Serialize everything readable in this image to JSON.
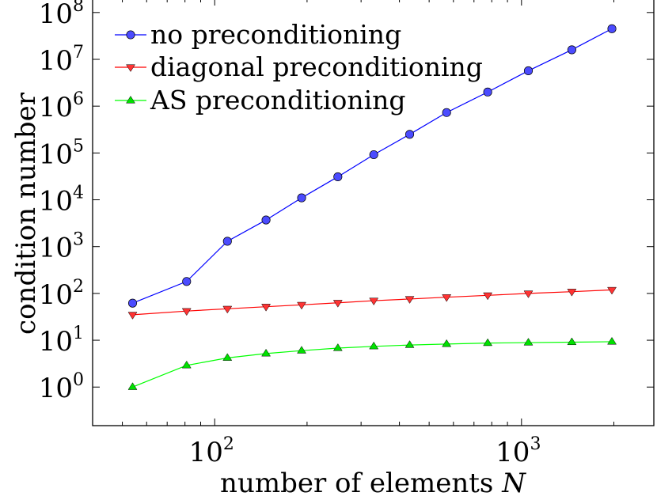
{
  "chart_data": {
    "type": "line",
    "title": "",
    "xlabel": "number of elements",
    "xlabel_var": "N",
    "ylabel": "condition number",
    "x_scale": "log",
    "y_scale": "log",
    "xlim": [
      40,
      2700
    ],
    "ylim": [
      0.15,
      200000000
    ],
    "x_ticks": [
      {
        "value": 100,
        "base": "10",
        "exp": "2"
      },
      {
        "value": 1000,
        "base": "10",
        "exp": "3"
      }
    ],
    "y_ticks": [
      {
        "value": 1,
        "base": "10",
        "exp": "0"
      },
      {
        "value": 10,
        "base": "10",
        "exp": "1"
      },
      {
        "value": 100,
        "base": "10",
        "exp": "2"
      },
      {
        "value": 1000,
        "base": "10",
        "exp": "3"
      },
      {
        "value": 10000,
        "base": "10",
        "exp": "4"
      },
      {
        "value": 100000,
        "base": "10",
        "exp": "5"
      },
      {
        "value": 1000000,
        "base": "10",
        "exp": "6"
      },
      {
        "value": 10000000,
        "base": "10",
        "exp": "7"
      },
      {
        "value": 100000000,
        "base": "10",
        "exp": "8"
      }
    ],
    "grid": false,
    "legend_position": "top-left",
    "x": [
      54,
      81,
      110,
      147,
      192,
      252,
      330,
      432,
      570,
      776,
      1053,
      1459,
      1971
    ],
    "series": [
      {
        "name": "no preconditioning",
        "color": "#0000ff",
        "marker_fill": "#4b4bff",
        "marker": "circle",
        "values": [
          62,
          180,
          1300,
          3700,
          11000,
          31000,
          92000,
          250000,
          730000,
          2000000,
          5700000,
          16000000,
          45000000
        ]
      },
      {
        "name": "diagonal preconditioning",
        "color": "#ff0000",
        "marker_fill": "#ff3333",
        "marker": "triangle-down",
        "values": [
          35,
          42,
          47,
          52,
          57,
          63,
          70,
          76,
          83,
          91,
          100,
          109,
          119
        ]
      },
      {
        "name": "AS preconditioning",
        "color": "#00ff00",
        "marker_fill": "#00e000",
        "marker": "triangle-up",
        "values": [
          1.0,
          2.9,
          4.2,
          5.2,
          6.0,
          6.8,
          7.4,
          7.9,
          8.3,
          8.7,
          8.9,
          9.1,
          9.3
        ]
      }
    ]
  }
}
